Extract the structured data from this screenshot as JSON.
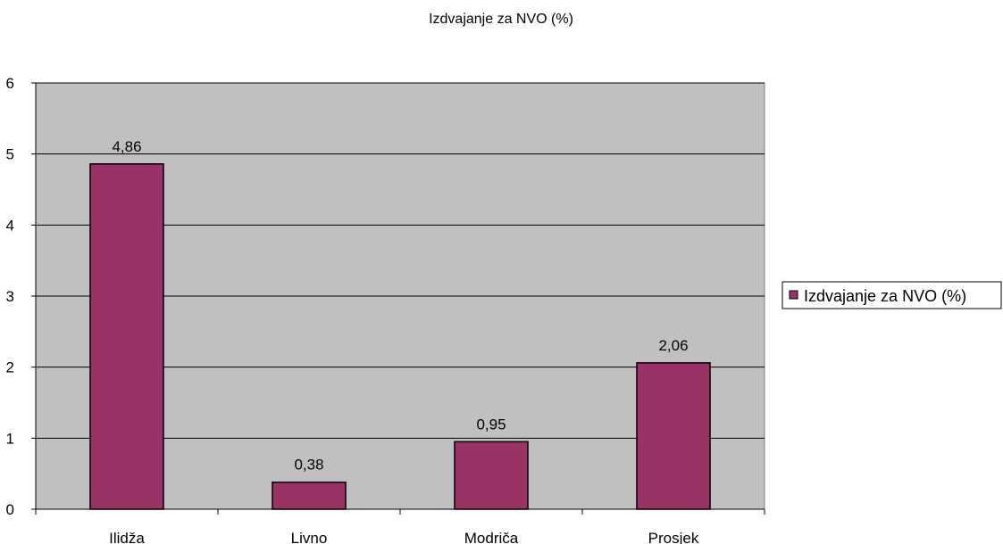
{
  "chart_data": {
    "type": "bar",
    "title": "Izdvajanje za NVO (%)",
    "xlabel": "",
    "ylabel": "",
    "categories": [
      "Ilidža",
      "Livno",
      "Modriča",
      "Prosjek"
    ],
    "series": [
      {
        "name": "Izdvajanje za NVO (%)",
        "values": [
          4.86,
          0.38,
          0.95,
          2.06
        ],
        "value_labels": [
          "4,86",
          "0,38",
          "0,95",
          "2,06"
        ]
      }
    ],
    "ylim": [
      0,
      6
    ],
    "yticks": [
      "0",
      "1",
      "2",
      "3",
      "4",
      "5",
      "6"
    ],
    "grid": true,
    "legend_position": "right",
    "colors": {
      "bar": "#993366",
      "plot_background": "#c0c0c0",
      "axis": "#000000",
      "gridline": "#000000"
    }
  }
}
